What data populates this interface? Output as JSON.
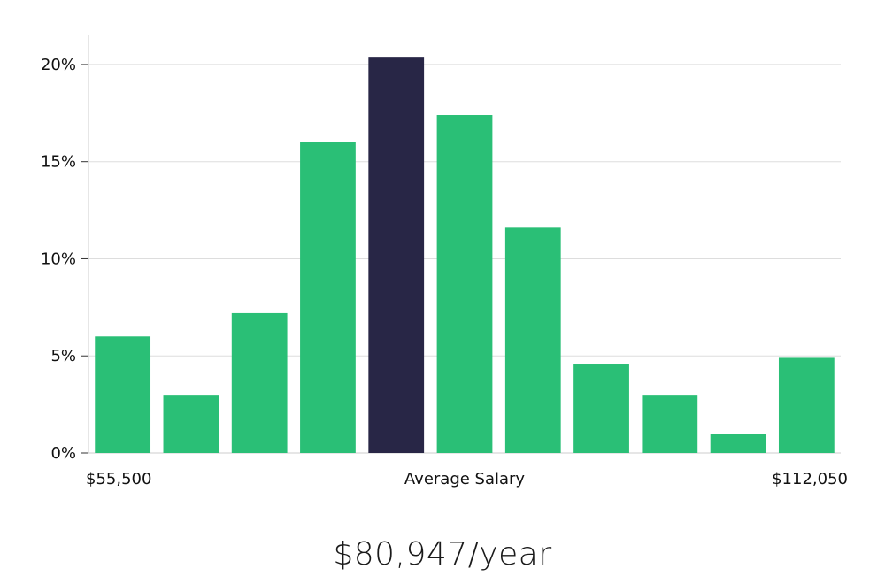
{
  "chart_data": {
    "type": "bar",
    "title": "",
    "xlabel": "",
    "ylabel": "",
    "ylim": [
      0,
      21.5
    ],
    "yticks": [
      0,
      5,
      10,
      15,
      20
    ],
    "ytick_labels": [
      "0%",
      "5%",
      "10%",
      "15%",
      "20%"
    ],
    "values": [
      6,
      3,
      7.2,
      16,
      20.4,
      17.4,
      11.6,
      4.6,
      3,
      1,
      4.9
    ],
    "highlight_index": 4,
    "x_labels": {
      "min": "$55,500",
      "center": "Average Salary",
      "max": "$112,050"
    },
    "grid": true
  },
  "colors": {
    "bar": "#2abf76",
    "highlight": "#282646",
    "grid": "#dddddd",
    "axis": "#cccccc"
  },
  "salary": "$80,947/year"
}
